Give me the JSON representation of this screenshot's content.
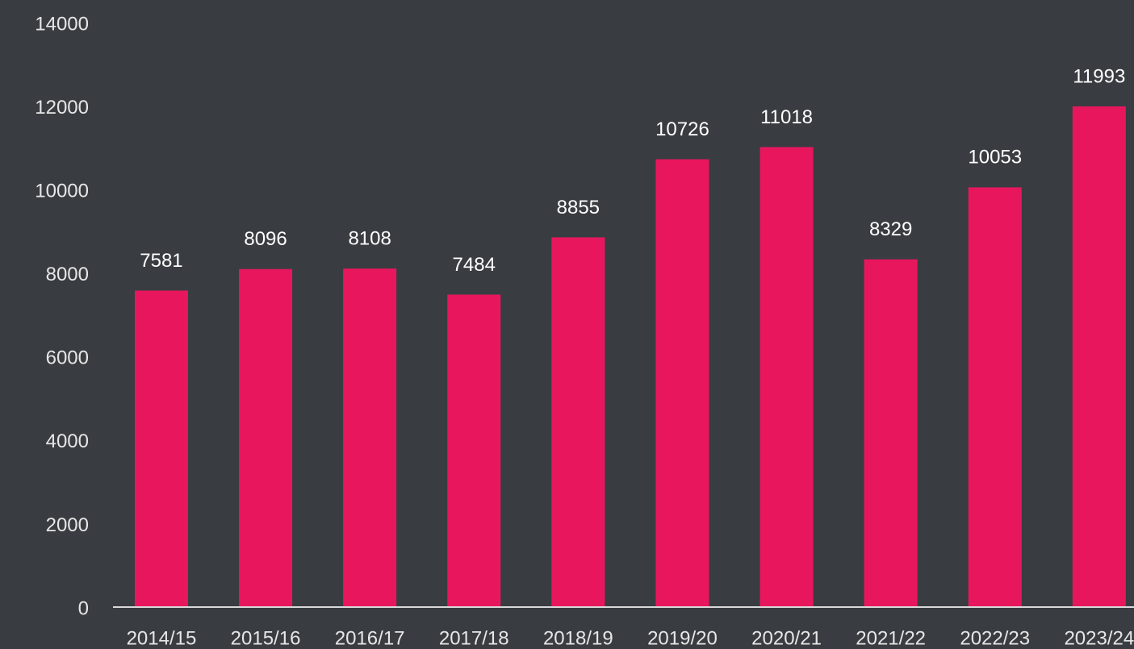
{
  "chart_data": {
    "type": "bar",
    "categories": [
      "2014/15",
      "2015/16",
      "2016/17",
      "2017/18",
      "2018/19",
      "2019/20",
      "2020/21",
      "2021/22",
      "2022/23",
      "2023/24"
    ],
    "values": [
      7581,
      8096,
      8108,
      7484,
      8855,
      10726,
      11018,
      8329,
      10053,
      11993
    ],
    "color": "#e8175d",
    "ylim": [
      0,
      14000
    ],
    "yticks": [
      0,
      2000,
      4000,
      6000,
      8000,
      10000,
      12000,
      14000
    ],
    "grid": false
  }
}
